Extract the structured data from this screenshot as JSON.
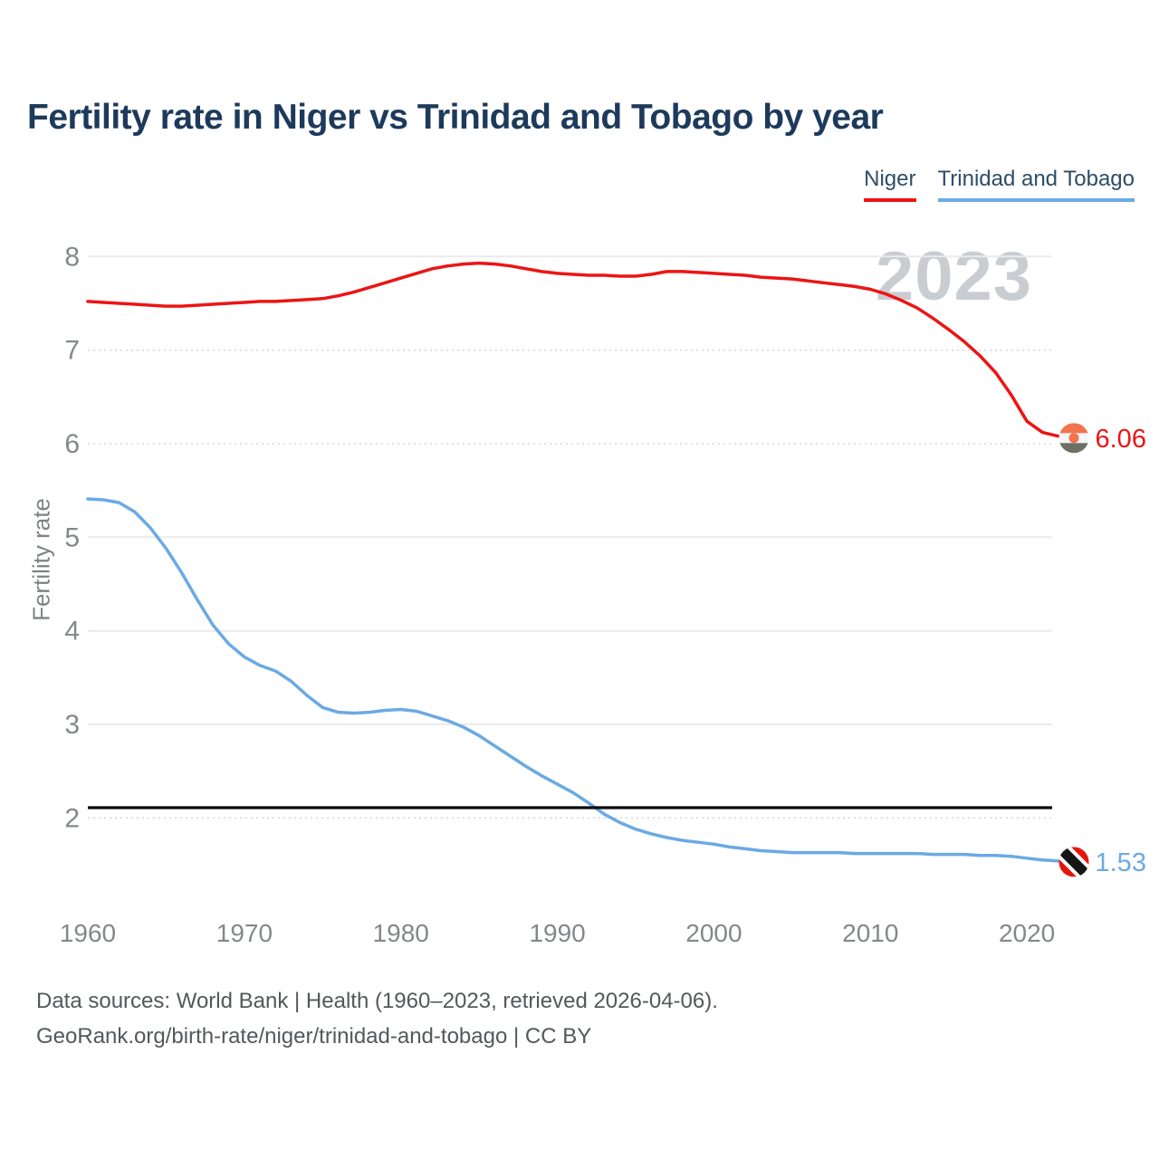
{
  "title": "Fertility rate in Niger vs Trinidad and Tobago by year",
  "legend": [
    {
      "label": "Niger",
      "color": "#ed1414"
    },
    {
      "label": "Trinidad and Tobago",
      "color": "#6aaae4"
    }
  ],
  "watermark": "2023",
  "footer": {
    "line1": "Data sources: World Bank | Health (1960–2023, retrieved 2026-04-06).",
    "line2": "GeoRank.org/birth-rate/niger/trinidad-and-tobago | CC BY"
  },
  "chart_data": {
    "type": "line",
    "title": "Fertility rate in Niger vs Trinidad and Tobago by year",
    "xlabel": "",
    "ylabel": "Fertility rate",
    "x_range": [
      1960,
      2023
    ],
    "x_step": 1,
    "x_ticks": [
      1960,
      1970,
      1980,
      1990,
      2000,
      2010,
      2020
    ],
    "y_ticks": [
      8,
      7,
      6,
      5,
      4,
      3,
      2
    ],
    "dashed_gridline_ticks": [
      7,
      6,
      2
    ],
    "ylim": [
      1.3,
      8.2
    ],
    "grid": true,
    "legend_position": "top-right",
    "reference_line": {
      "value": 2.11,
      "color": "#0b0b0b"
    },
    "series": [
      {
        "name": "Niger",
        "color": "#ed1414",
        "end_label": "6.06",
        "end_value": 6.06,
        "flag": "niger-flag-icon",
        "flag_colors": {
          "top": "#f2734c",
          "middle": "#f6f6f6",
          "bottom": "#6d7064",
          "dot": "#f2734c"
        },
        "values": [
          7.52,
          7.51,
          7.5,
          7.49,
          7.48,
          7.47,
          7.47,
          7.48,
          7.49,
          7.5,
          7.51,
          7.52,
          7.52,
          7.53,
          7.54,
          7.55,
          7.58,
          7.62,
          7.67,
          7.72,
          7.77,
          7.82,
          7.87,
          7.9,
          7.92,
          7.93,
          7.92,
          7.9,
          7.87,
          7.84,
          7.82,
          7.81,
          7.8,
          7.8,
          7.79,
          7.79,
          7.81,
          7.84,
          7.84,
          7.83,
          7.82,
          7.81,
          7.8,
          7.78,
          7.77,
          7.76,
          7.74,
          7.72,
          7.7,
          7.68,
          7.65,
          7.6,
          7.53,
          7.45,
          7.34,
          7.22,
          7.09,
          6.94,
          6.76,
          6.52,
          6.24,
          6.12,
          6.08,
          6.06
        ]
      },
      {
        "name": "Trinidad and Tobago",
        "color": "#6aaae4",
        "end_label": "1.53",
        "end_value": 1.53,
        "flag": "trinidad-and-tobago-flag-icon",
        "flag_colors": {
          "field": "#e8150e",
          "stripe": "#161616",
          "border": "#ffffff"
        },
        "values": [
          5.41,
          5.4,
          5.37,
          5.27,
          5.1,
          4.88,
          4.62,
          4.33,
          4.06,
          3.86,
          3.72,
          3.63,
          3.57,
          3.46,
          3.31,
          3.18,
          3.13,
          3.12,
          3.13,
          3.15,
          3.16,
          3.14,
          3.09,
          3.04,
          2.97,
          2.88,
          2.77,
          2.66,
          2.55,
          2.45,
          2.36,
          2.27,
          2.16,
          2.04,
          1.95,
          1.88,
          1.83,
          1.79,
          1.76,
          1.74,
          1.72,
          1.69,
          1.67,
          1.65,
          1.64,
          1.63,
          1.63,
          1.63,
          1.63,
          1.62,
          1.62,
          1.62,
          1.62,
          1.62,
          1.61,
          1.61,
          1.61,
          1.6,
          1.6,
          1.59,
          1.57,
          1.55,
          1.54,
          1.53
        ]
      }
    ]
  }
}
